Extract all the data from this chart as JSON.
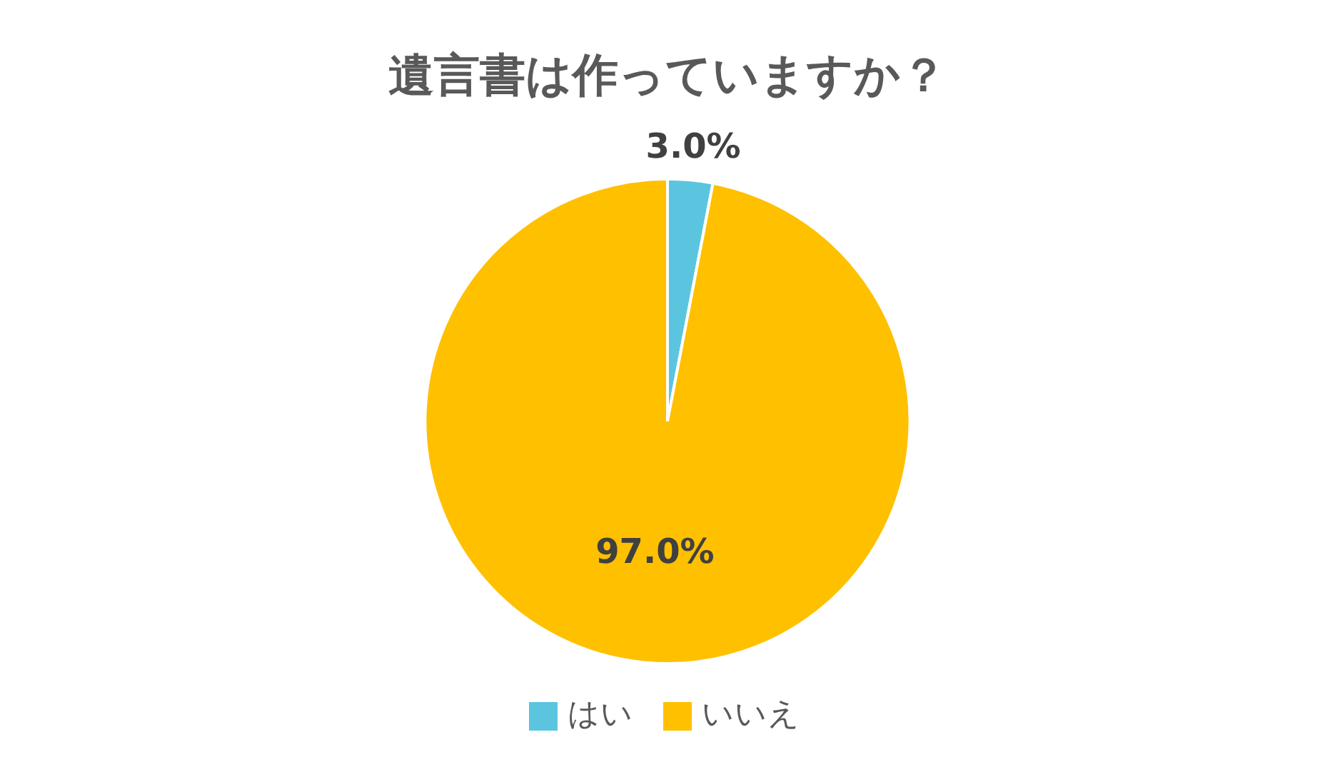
{
  "chart_data": {
    "type": "pie",
    "title": "遺言書は作っていますか？",
    "categories": [
      "はい",
      "いいえ"
    ],
    "values": [
      3.0,
      97.0
    ],
    "colors": [
      "#5bc5e0",
      "#ffc000"
    ],
    "value_labels": [
      "3.0%",
      "97.0%"
    ],
    "legend": "bottom"
  }
}
